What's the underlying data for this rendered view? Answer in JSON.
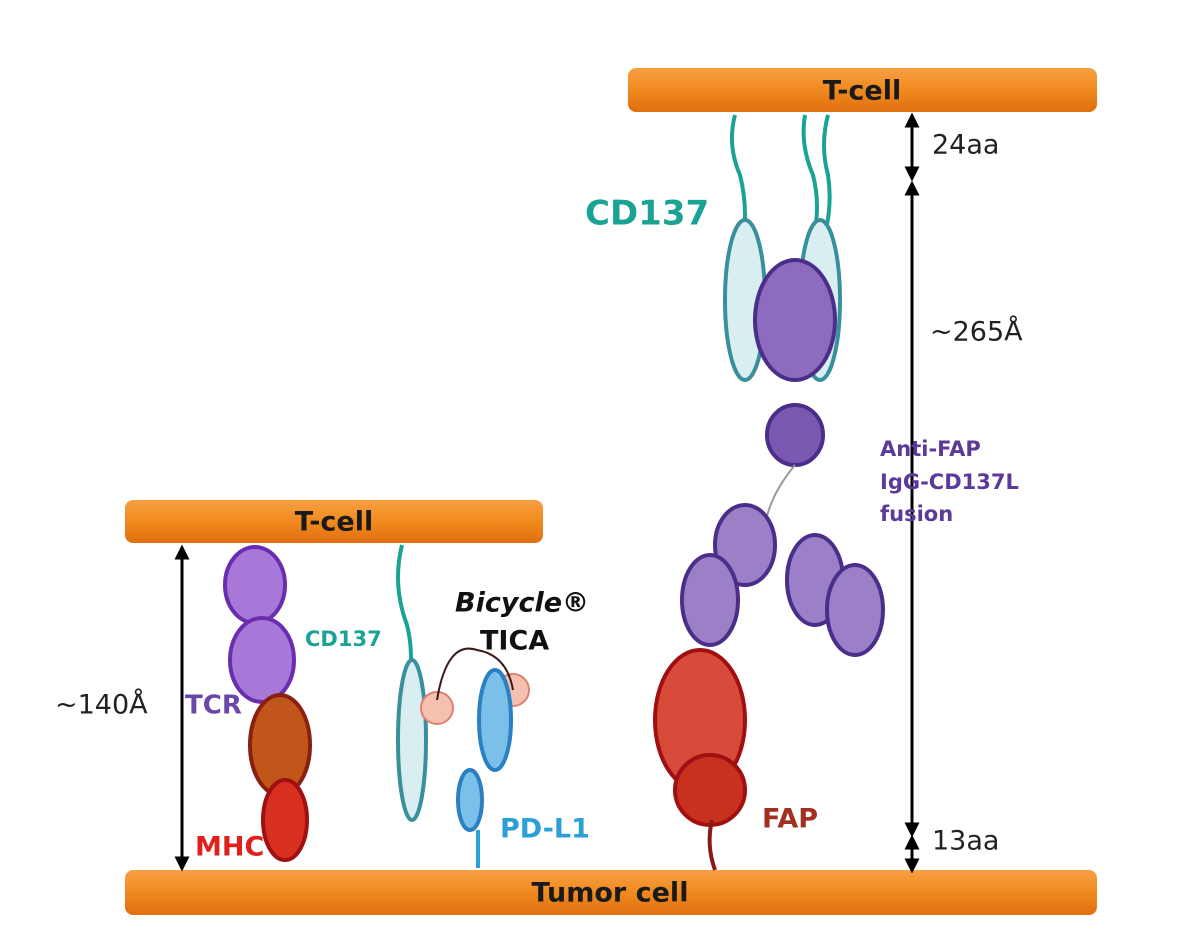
{
  "bars": {
    "top_tcell": "T-cell",
    "left_tcell": "T-cell",
    "tumor": "Tumor cell"
  },
  "right_panel": {
    "top_distance": "24aa",
    "main_distance": "~265Å",
    "bottom_distance": "13aa",
    "receptor": "CD137",
    "fusion_label": [
      "Anti-FAP",
      "IgG-CD137L",
      "fusion"
    ],
    "target": "FAP"
  },
  "left_panel": {
    "distance": "~140Å",
    "tcr": "TCR",
    "mhc": "MHC",
    "receptor": "CD137",
    "bicycle": "Bicycle®",
    "tica": "TICA",
    "target": "PD-L1"
  }
}
